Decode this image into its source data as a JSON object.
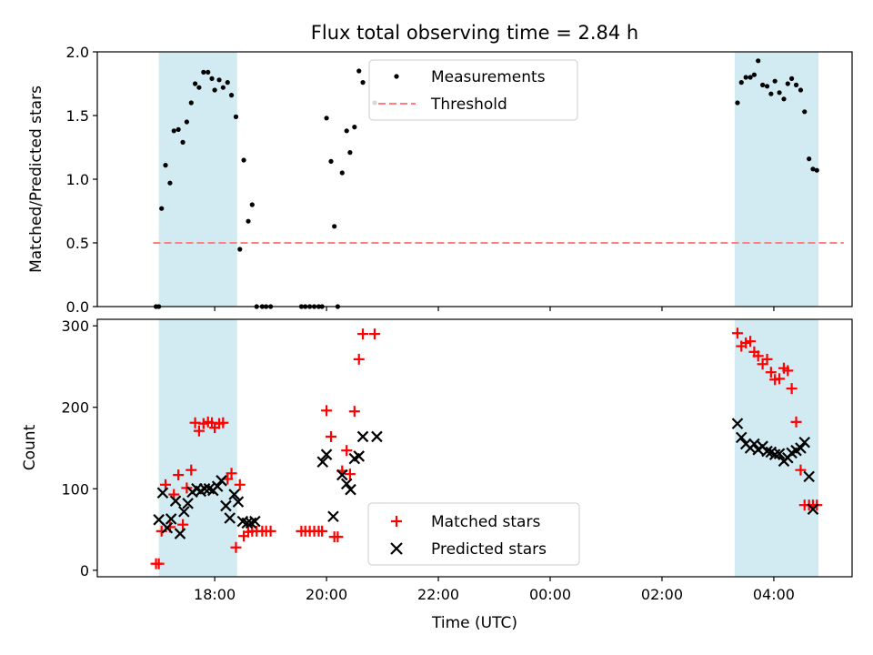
{
  "chart_data": {
    "title": "Flux total observing time = 2.84 h",
    "xlabel": "Time (UTC)",
    "x_unit": "hours since 00:00 of first night (UTC)",
    "xlim": [
      15.9,
      29.4
    ],
    "x_ticks": [
      {
        "value": 18,
        "label": "18:00"
      },
      {
        "value": 20,
        "label": "20:00"
      },
      {
        "value": 22,
        "label": "22:00"
      },
      {
        "value": 24,
        "label": "00:00"
      },
      {
        "value": 26,
        "label": "02:00"
      },
      {
        "value": 28,
        "label": "04:00"
      }
    ],
    "shaded_intervals": [
      [
        17.0,
        18.4
      ],
      [
        27.3,
        28.8
      ]
    ],
    "shade_color": "#add8e6",
    "top": {
      "type": "scatter",
      "ylabel": "Matched/Predicted stars",
      "ylim": [
        0,
        2.0
      ],
      "y_ticks": [
        {
          "value": 0.0,
          "label": "0.0"
        },
        {
          "value": 0.5,
          "label": "0.5"
        },
        {
          "value": 1.0,
          "label": "1.0"
        },
        {
          "value": 1.5,
          "label": "1.5"
        },
        {
          "value": 2.0,
          "label": "2.0"
        }
      ],
      "legend": {
        "position": "upper-center",
        "entries": {
          "measurements": "Measurements",
          "threshold": "Threshold"
        }
      },
      "threshold": {
        "value": 0.5,
        "x_range": [
          16.9,
          29.25
        ],
        "color": "#ff7f7f"
      },
      "measurements": {
        "color": "#000000",
        "x": [
          16.95,
          17.0,
          17.05,
          17.12,
          17.2,
          17.27,
          17.35,
          17.43,
          17.5,
          17.58,
          17.65,
          17.72,
          17.8,
          17.88,
          17.95,
          18.0,
          18.08,
          18.15,
          18.23,
          18.3,
          18.38,
          18.45,
          18.52,
          18.6,
          18.67,
          18.75,
          18.85,
          18.92,
          19.0,
          19.55,
          19.62,
          19.7,
          19.78,
          19.86,
          19.92,
          20.0,
          20.08,
          20.14,
          20.2,
          20.28,
          20.36,
          20.42,
          20.5,
          20.58,
          20.65,
          20.86,
          27.35,
          27.42,
          27.5,
          27.58,
          27.65,
          27.72,
          27.8,
          27.88,
          27.95,
          28.02,
          28.1,
          28.18,
          28.25,
          28.32,
          28.4,
          28.48,
          28.55,
          28.63,
          28.7,
          28.77
        ],
        "y": [
          0,
          0,
          0.77,
          1.11,
          0.97,
          1.38,
          1.39,
          1.29,
          1.45,
          1.6,
          1.75,
          1.72,
          1.84,
          1.84,
          1.79,
          1.7,
          1.78,
          1.72,
          1.76,
          1.66,
          1.49,
          0.45,
          1.15,
          0.67,
          0.8,
          0,
          0,
          0,
          0,
          0,
          0,
          0,
          0,
          0,
          0,
          1.48,
          1.14,
          0.63,
          0,
          1.05,
          1.38,
          1.21,
          1.41,
          1.85,
          1.76,
          1.6,
          1.6,
          1.76,
          1.8,
          1.8,
          1.82,
          1.93,
          1.74,
          1.73,
          1.67,
          1.77,
          1.68,
          1.63,
          1.75,
          1.79,
          1.74,
          1.7,
          1.53,
          1.16,
          1.08,
          1.07
        ]
      }
    },
    "bottom": {
      "type": "scatter",
      "ylabel": "Count",
      "ylim": [
        -8,
        308
      ],
      "y_ticks": [
        {
          "value": 0,
          "label": "0"
        },
        {
          "value": 100,
          "label": "100"
        },
        {
          "value": 200,
          "label": "200"
        },
        {
          "value": 300,
          "label": "300"
        }
      ],
      "legend": {
        "position": "lower-center",
        "entries": {
          "matched": "Matched stars",
          "predicted": "Predicted stars"
        }
      },
      "matched": {
        "name": "Matched stars",
        "marker": "plus",
        "color": "#ff0000",
        "x": [
          16.95,
          17.0,
          17.05,
          17.12,
          17.2,
          17.27,
          17.35,
          17.43,
          17.5,
          17.58,
          17.65,
          17.72,
          17.8,
          17.88,
          17.95,
          18.0,
          18.08,
          18.15,
          18.23,
          18.3,
          18.38,
          18.45,
          18.52,
          18.6,
          18.67,
          18.75,
          18.85,
          18.92,
          19.0,
          19.55,
          19.62,
          19.7,
          19.78,
          19.86,
          19.92,
          20.0,
          20.08,
          20.14,
          20.2,
          20.28,
          20.36,
          20.42,
          20.5,
          20.58,
          20.65,
          20.86,
          27.35,
          27.42,
          27.5,
          27.58,
          27.65,
          27.72,
          27.8,
          27.88,
          27.95,
          28.02,
          28.1,
          28.18,
          28.25,
          28.32,
          28.4,
          28.48,
          28.55,
          28.63,
          28.7,
          28.77
        ],
        "y": [
          8,
          8,
          48,
          105,
          53,
          93,
          117,
          56,
          101,
          123,
          181,
          171,
          180,
          182,
          181,
          175,
          180,
          181,
          112,
          119,
          28,
          105,
          42,
          47,
          48,
          48,
          48,
          48,
          48,
          48,
          48,
          48,
          48,
          48,
          48,
          196,
          164,
          41,
          41,
          122,
          147,
          118,
          195,
          259,
          290,
          290,
          291,
          275,
          279,
          281,
          268,
          263,
          253,
          259,
          243,
          234,
          235,
          248,
          245,
          223,
          182,
          123,
          80,
          80,
          80,
          80
        ]
      },
      "predicted": {
        "name": "Predicted stars",
        "marker": "x",
        "color": "#000000",
        "x": [
          17.0,
          17.07,
          17.15,
          17.22,
          17.3,
          17.38,
          17.45,
          17.52,
          17.6,
          17.68,
          17.75,
          17.82,
          17.9,
          17.97,
          18.05,
          18.12,
          18.2,
          18.27,
          18.35,
          18.42,
          18.5,
          18.58,
          18.65,
          18.72,
          19.93,
          20.0,
          20.12,
          20.28,
          20.36,
          20.43,
          20.5,
          20.58,
          20.65,
          20.9,
          27.35,
          27.42,
          27.5,
          27.58,
          27.65,
          27.72,
          27.8,
          27.88,
          27.95,
          28.02,
          28.1,
          28.18,
          28.25,
          28.32,
          28.4,
          28.48,
          28.55,
          28.63,
          28.7
        ],
        "y": [
          62,
          95,
          52,
          63,
          85,
          45,
          72,
          82,
          96,
          100,
          97,
          100,
          100,
          98,
          103,
          110,
          79,
          64,
          93,
          84,
          60,
          58,
          58,
          60,
          133,
          142,
          66,
          117,
          106,
          99,
          137,
          140,
          164,
          164,
          180,
          163,
          155,
          150,
          155,
          148,
          152,
          146,
          145,
          142,
          143,
          134,
          138,
          144,
          147,
          150,
          157,
          115,
          75
        ]
      }
    }
  }
}
